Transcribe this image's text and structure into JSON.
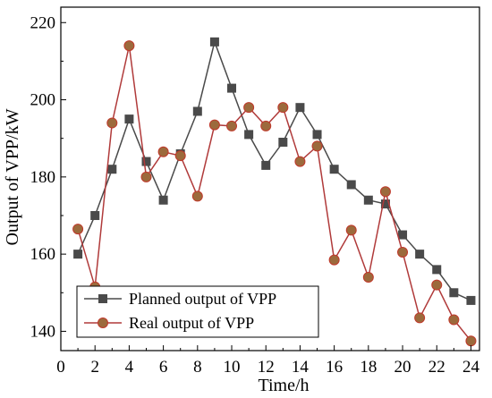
{
  "chart_data": {
    "type": "line",
    "xlabel": "Time/h",
    "ylabel": "Output of VPP/kW",
    "xlim": [
      0,
      24.5
    ],
    "ylim": [
      135,
      224
    ],
    "xticks": [
      0,
      2,
      4,
      6,
      8,
      10,
      12,
      14,
      16,
      18,
      20,
      22,
      24
    ],
    "yticks": [
      140,
      160,
      180,
      200,
      220
    ],
    "grid": false,
    "legend_position": "bottom-left",
    "x": [
      1,
      2,
      3,
      4,
      5,
      6,
      7,
      8,
      9,
      10,
      11,
      12,
      13,
      14,
      15,
      16,
      17,
      18,
      19,
      20,
      21,
      22,
      23,
      24
    ],
    "series": [
      {
        "name": "Planned output of VPP",
        "marker": "square",
        "color": "#4a4a4a",
        "values": [
          160,
          170,
          182,
          195,
          184,
          174,
          186,
          197,
          215,
          203,
          191,
          183,
          189,
          198,
          191,
          182,
          178,
          174,
          173,
          165,
          160,
          156,
          150,
          148
        ]
      },
      {
        "name": "Real output of VPP",
        "marker": "circle",
        "color": "#b03a3a",
        "values": [
          166.5,
          151.5,
          194,
          214,
          180,
          186.5,
          185.5,
          175,
          193.5,
          193.2,
          198,
          193.2,
          198,
          184,
          188,
          158.5,
          166.2,
          154,
          176.2,
          160.5,
          143.5,
          152,
          143,
          137.5
        ]
      }
    ]
  }
}
